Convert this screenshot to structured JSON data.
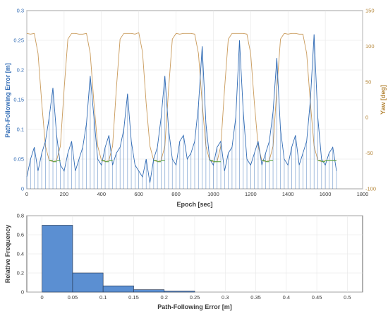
{
  "chart_data": [
    {
      "type": "line",
      "xlabel": "Epoch [sec]",
      "ylabel": "Path-Following Error [m]",
      "y2label": "Yaw [deg]",
      "xlim": [
        0,
        1800
      ],
      "ylim": [
        0,
        0.3
      ],
      "y2lim": [
        -100,
        150
      ],
      "x_ticks": [
        0,
        200,
        400,
        600,
        800,
        1000,
        1200,
        1400,
        1600,
        1800
      ],
      "y_ticks": [
        0,
        0.05,
        0.1,
        0.15,
        0.2,
        0.25,
        0.3
      ],
      "y2_ticks": [
        -100,
        -50,
        0,
        50,
        100,
        150
      ],
      "grid": true,
      "colors": {
        "error": "#2f6ab4",
        "yaw": "#c99a5a",
        "yaw_mean": "#55a540",
        "axis_left": "#2f6ab4",
        "axis_right": "#b5873a"
      },
      "series": [
        {
          "axis": "left",
          "x": [
            0,
            20,
            40,
            60,
            80,
            100,
            120,
            140,
            160,
            180,
            200,
            220,
            240,
            260,
            280,
            300,
            320,
            340,
            360,
            380,
            400,
            420,
            440,
            460,
            480,
            500,
            520,
            540,
            560,
            580,
            600,
            620,
            640,
            660,
            680,
            700,
            720,
            740,
            760,
            780,
            800,
            820,
            840,
            860,
            880,
            900,
            920,
            940,
            960,
            980,
            1000,
            1020,
            1040,
            1060,
            1080,
            1100,
            1120,
            1140,
            1160,
            1180,
            1200,
            1220,
            1240,
            1260,
            1280,
            1300,
            1320,
            1340,
            1360,
            1380,
            1400,
            1420,
            1440,
            1460,
            1480,
            1500,
            1520,
            1540,
            1560,
            1580,
            1600,
            1620,
            1640,
            1660
          ],
          "y": [
            0.02,
            0.05,
            0.07,
            0.03,
            0.06,
            0.08,
            0.12,
            0.17,
            0.09,
            0.04,
            0.03,
            0.06,
            0.08,
            0.03,
            0.05,
            0.07,
            0.11,
            0.19,
            0.12,
            0.05,
            0.04,
            0.07,
            0.09,
            0.04,
            0.06,
            0.07,
            0.1,
            0.16,
            0.08,
            0.04,
            0.03,
            0.02,
            0.05,
            0.01,
            0.05,
            0.07,
            0.12,
            0.19,
            0.1,
            0.05,
            0.04,
            0.08,
            0.09,
            0.05,
            0.06,
            0.08,
            0.14,
            0.24,
            0.11,
            0.05,
            0.04,
            0.07,
            0.08,
            0.03,
            0.06,
            0.07,
            0.12,
            0.25,
            0.13,
            0.05,
            0.04,
            0.06,
            0.08,
            0.04,
            0.06,
            0.08,
            0.13,
            0.22,
            0.1,
            0.05,
            0.04,
            0.07,
            0.09,
            0.04,
            0.06,
            0.08,
            0.15,
            0.26,
            0.12,
            0.05,
            0.04,
            0.06,
            0.07,
            0.03
          ]
        },
        {
          "axis": "right",
          "x": [
            0,
            20,
            40,
            60,
            80,
            100,
            120,
            140,
            160,
            180,
            200,
            220,
            240,
            260,
            280,
            300,
            320,
            340,
            360,
            380,
            400,
            420,
            440,
            460,
            480,
            500,
            520,
            540,
            560,
            580,
            600,
            620,
            640,
            660,
            680,
            700,
            720,
            740,
            760,
            780,
            800,
            820,
            840,
            860,
            880,
            900,
            920,
            940,
            960,
            980,
            1000,
            1020,
            1040,
            1060,
            1080,
            1100,
            1120,
            1140,
            1160,
            1180,
            1200,
            1220,
            1240,
            1260,
            1280,
            1300,
            1320,
            1340,
            1360,
            1380,
            1400,
            1420,
            1440,
            1460,
            1480,
            1500,
            1520,
            1540,
            1560,
            1580,
            1600,
            1620,
            1640,
            1660
          ],
          "y": [
            118,
            117,
            118,
            90,
            20,
            -40,
            -60,
            -62,
            -60,
            -40,
            40,
            110,
            118,
            118,
            117,
            117,
            118,
            90,
            20,
            -40,
            -60,
            -62,
            -60,
            -40,
            40,
            110,
            118,
            118,
            118,
            117,
            119,
            92,
            20,
            -40,
            -60,
            -62,
            -60,
            -40,
            40,
            110,
            118,
            117,
            118,
            118,
            118,
            117,
            90,
            20,
            -40,
            -60,
            -62,
            -62,
            -40,
            40,
            110,
            118,
            118,
            118,
            118,
            117,
            90,
            20,
            -40,
            -60,
            -62,
            -60,
            -40,
            40,
            110,
            118,
            117,
            118,
            118,
            117,
            117,
            90,
            20,
            -40,
            -60,
            -62,
            -60,
            -60,
            -60,
            -60
          ]
        }
      ]
    },
    {
      "type": "bar",
      "xlabel": "Path-Following Error [m]",
      "ylabel": "Relative Frequency",
      "xlim": [
        -0.025,
        0.525
      ],
      "ylim": [
        0,
        0.8
      ],
      "x_ticks": [
        0,
        0.05,
        0.1,
        0.15,
        0.2,
        0.25,
        0.3,
        0.35,
        0.4,
        0.45,
        0.5
      ],
      "y_ticks": [
        0,
        0.2,
        0.4,
        0.6,
        0.8
      ],
      "grid": true,
      "bin_edges": [
        0,
        0.05,
        0.1,
        0.15,
        0.2,
        0.25
      ],
      "values": [
        0.7,
        0.2,
        0.065,
        0.025,
        0.01
      ],
      "colors": {
        "bar": "#5b8fd2",
        "edge": "#2a3d5a"
      }
    }
  ]
}
